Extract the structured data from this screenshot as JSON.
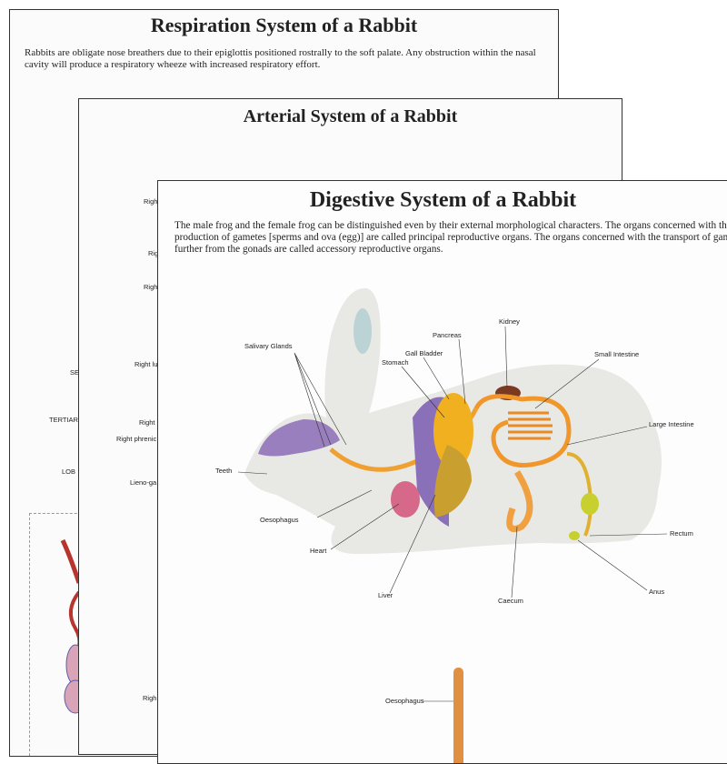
{
  "posters": [
    {
      "title": "Respiration System of a Rabbit",
      "description": "Rabbits are obligate nose breathers due to their epiglottis positioned rostrally to the soft palate. Any obstruction within the nasal cavity will produce a respiratory wheeze with increased respiratory effort.",
      "labels": [
        "SE",
        "TERTIAR",
        "LOB"
      ]
    },
    {
      "title": "Arterial System of a Rabbit",
      "labels": [
        "Righ",
        "Rig",
        "Righ",
        "Right lu",
        "Right",
        "Right phrenic",
        "Lieno-ga",
        "Righ"
      ]
    },
    {
      "title": "Digestive System of a Rabbit",
      "description": "The male frog and the female frog can be distinguished even by their external morphological characters. The organs concerned with the production of gametes [sperms and ova (egg)] are called principal reproductive organs. The organs concerned with the transport of gametes further from the gonads are called accessory reproductive organs.",
      "labels": {
        "salivary_glands": "Salivary Glands",
        "pancreas": "Pancreas",
        "kidney": "Kidney",
        "gall_bladder": "Gall Bladder",
        "stomach": "Stomach",
        "small_intestine": "Small Intestine",
        "large_intestine": "Large Intestine",
        "teeth": "Teeth",
        "oesophagus": "Oesophagus",
        "heart": "Heart",
        "liver": "Liver",
        "caecum": "Caecum",
        "rectum": "Rectum",
        "anus": "Anus",
        "oesophagus_2": "Oesophagus"
      }
    }
  ]
}
